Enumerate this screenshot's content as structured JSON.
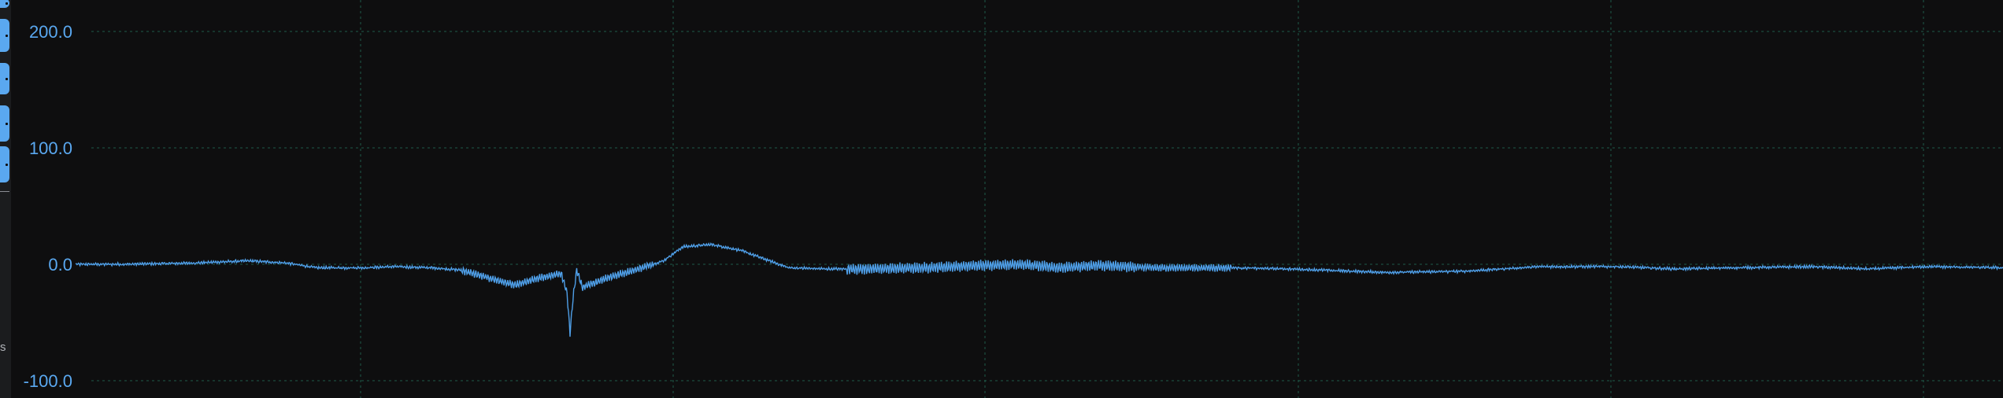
{
  "sidebar": {
    "buttons": [
      "btn-1",
      "btn-2",
      "btn-3",
      "btn-4",
      "btn-5"
    ],
    "bottom_char": "s"
  },
  "colors": {
    "background": "#0e0e0f",
    "grid": "#1f5a4a",
    "series": "#4f9fe8",
    "accent": "#5aa8f0"
  },
  "chart_data": {
    "type": "line",
    "title": "",
    "xlabel": "",
    "ylabel": "",
    "ylim": [
      -110,
      240
    ],
    "xlim": [
      0,
      1
    ],
    "yticks": [
      -100,
      0,
      100,
      200
    ],
    "ytick_labels": [
      "-100.0",
      "0.0",
      "100.0",
      "200.0"
    ],
    "grid": true,
    "legend": "none",
    "series": [
      {
        "values": [
          [
            0.0,
            0
          ],
          [
            0.025,
            0
          ],
          [
            0.06,
            1
          ],
          [
            0.09,
            3
          ],
          [
            0.11,
            1
          ],
          [
            0.125,
            -3
          ],
          [
            0.15,
            -3
          ],
          [
            0.165,
            -2
          ],
          [
            0.185,
            -3
          ],
          [
            0.2,
            -5
          ],
          [
            0.215,
            -12
          ],
          [
            0.228,
            -18
          ],
          [
            0.24,
            -12
          ],
          [
            0.252,
            -8
          ],
          [
            0.255,
            -25
          ],
          [
            0.2565,
            -60
          ],
          [
            0.258,
            -30
          ],
          [
            0.26,
            -5
          ],
          [
            0.263,
            -20
          ],
          [
            0.275,
            -12
          ],
          [
            0.29,
            -5
          ],
          [
            0.305,
            3
          ],
          [
            0.315,
            15
          ],
          [
            0.33,
            17
          ],
          [
            0.345,
            12
          ],
          [
            0.36,
            3
          ],
          [
            0.37,
            -3
          ],
          [
            0.39,
            -4
          ],
          [
            0.41,
            -4
          ],
          [
            0.44,
            -3
          ],
          [
            0.47,
            -1
          ],
          [
            0.49,
            0
          ],
          [
            0.51,
            -3
          ],
          [
            0.53,
            -1
          ],
          [
            0.56,
            -3
          ],
          [
            0.6,
            -3
          ],
          [
            0.63,
            -4
          ],
          [
            0.68,
            -7
          ],
          [
            0.72,
            -6
          ],
          [
            0.76,
            -2
          ],
          [
            0.8,
            -2
          ],
          [
            0.83,
            -4
          ],
          [
            0.86,
            -3
          ],
          [
            0.9,
            -2
          ],
          [
            0.93,
            -4
          ],
          [
            0.96,
            -2
          ],
          [
            1.0,
            -3
          ]
        ]
      }
    ]
  }
}
